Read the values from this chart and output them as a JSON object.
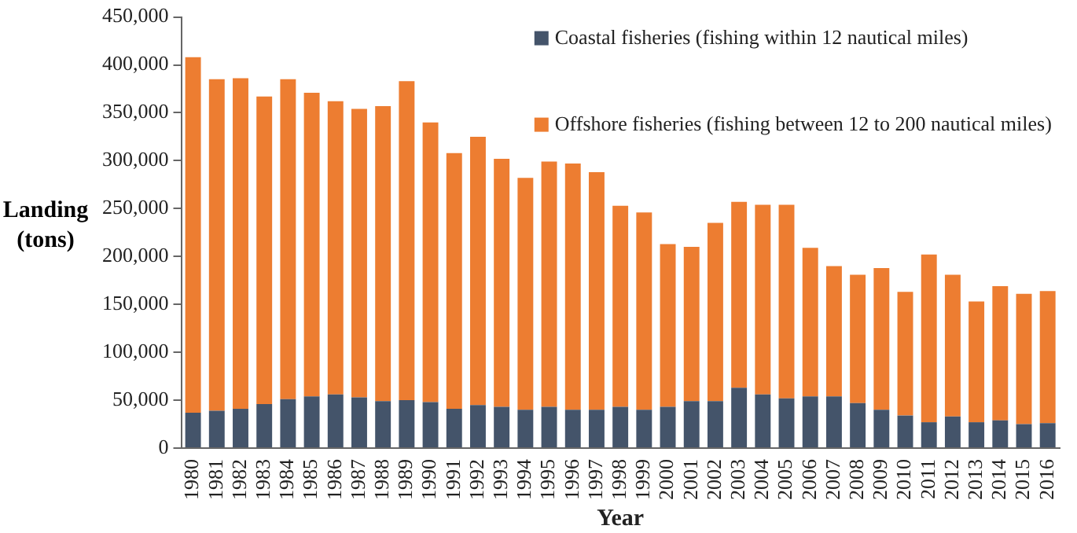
{
  "chart_data": {
    "type": "bar",
    "stacked": true,
    "xlabel": "Year",
    "ylabel": "Landing (tons)",
    "categories": [
      "1980",
      "1981",
      "1982",
      "1983",
      "1984",
      "1985",
      "1986",
      "1987",
      "1988",
      "1989",
      "1990",
      "1991",
      "1992",
      "1993",
      "1994",
      "1995",
      "1996",
      "1997",
      "1998",
      "1999",
      "2000",
      "2001",
      "2002",
      "2003",
      "2004",
      "2005",
      "2006",
      "2007",
      "2008",
      "2009",
      "2010",
      "2011",
      "2012",
      "2013",
      "2014",
      "2015",
      "2016"
    ],
    "series": [
      {
        "name": "Coastal fisheries (fishing within 12 nautical miles)",
        "color": "#44546a",
        "values": [
          37000,
          39000,
          41000,
          46000,
          51000,
          54000,
          56000,
          53000,
          49000,
          50000,
          48000,
          41000,
          45000,
          43000,
          40000,
          43000,
          40000,
          40000,
          43000,
          40000,
          43000,
          49000,
          49000,
          63000,
          56000,
          52000,
          54000,
          54000,
          47000,
          40000,
          34000,
          27000,
          33000,
          27000,
          29000,
          25000,
          26000
        ]
      },
      {
        "name": "Offshore fisheries (fishing between 12 to 200 nautical miles)",
        "color": "#ed7d31",
        "values": [
          371000,
          346000,
          345000,
          321000,
          334000,
          317000,
          306000,
          301000,
          308000,
          333000,
          292000,
          267000,
          280000,
          259000,
          242000,
          256000,
          257000,
          248000,
          210000,
          206000,
          170000,
          161000,
          186000,
          194000,
          198000,
          202000,
          155000,
          136000,
          134000,
          148000,
          129000,
          175000,
          148000,
          126000,
          140000,
          136000,
          138000
        ]
      }
    ],
    "ylim": [
      0,
      450000
    ],
    "yticks": [
      {
        "value": 0,
        "label": "0"
      },
      {
        "value": 50000,
        "label": "50,000"
      },
      {
        "value": 100000,
        "label": "100,000"
      },
      {
        "value": 150000,
        "label": "150,000"
      },
      {
        "value": 200000,
        "label": "200,000"
      },
      {
        "value": 250000,
        "label": "250,000"
      },
      {
        "value": 300000,
        "label": "300,000"
      },
      {
        "value": 350000,
        "label": "350,000"
      },
      {
        "value": 400000,
        "label": "400,000"
      },
      {
        "value": 450000,
        "label": "450,000"
      }
    ],
    "grid": false,
    "legend": "top right"
  }
}
